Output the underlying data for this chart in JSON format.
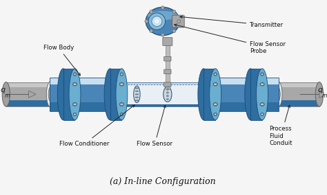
{
  "bg_color": "#f5f5f5",
  "title": "(a) In-line Configuration",
  "title_fontsize": 9,
  "pipe_color": "#4a85b8",
  "pipe_dark": "#1a4a7a",
  "pipe_mid": "#2e6ea0",
  "pipe_light": "#8abcd8",
  "pipe_highlight": "#c8dff0",
  "flange_color": "#2e6ea0",
  "flange_face": "#6aaed0",
  "gray_color": "#909090",
  "gray_light": "#c8c8c8",
  "gray_mid": "#a8a8a8",
  "gray_dark": "#606060",
  "white_inner": "#e8eff5",
  "text_color": "#111111",
  "line_color": "#333333",
  "labels": {
    "transmitter": "Transmitter",
    "probe": "Flow Sensor\nProbe",
    "flow_body": "Flow Body",
    "flow_conditioner": "Flow Conditioner",
    "flow_sensor": "Flow Sensor",
    "process_conduit": "Process\nFluid\nConduit"
  },
  "fig_width": 4.74,
  "fig_height": 2.84,
  "dpi": 100
}
